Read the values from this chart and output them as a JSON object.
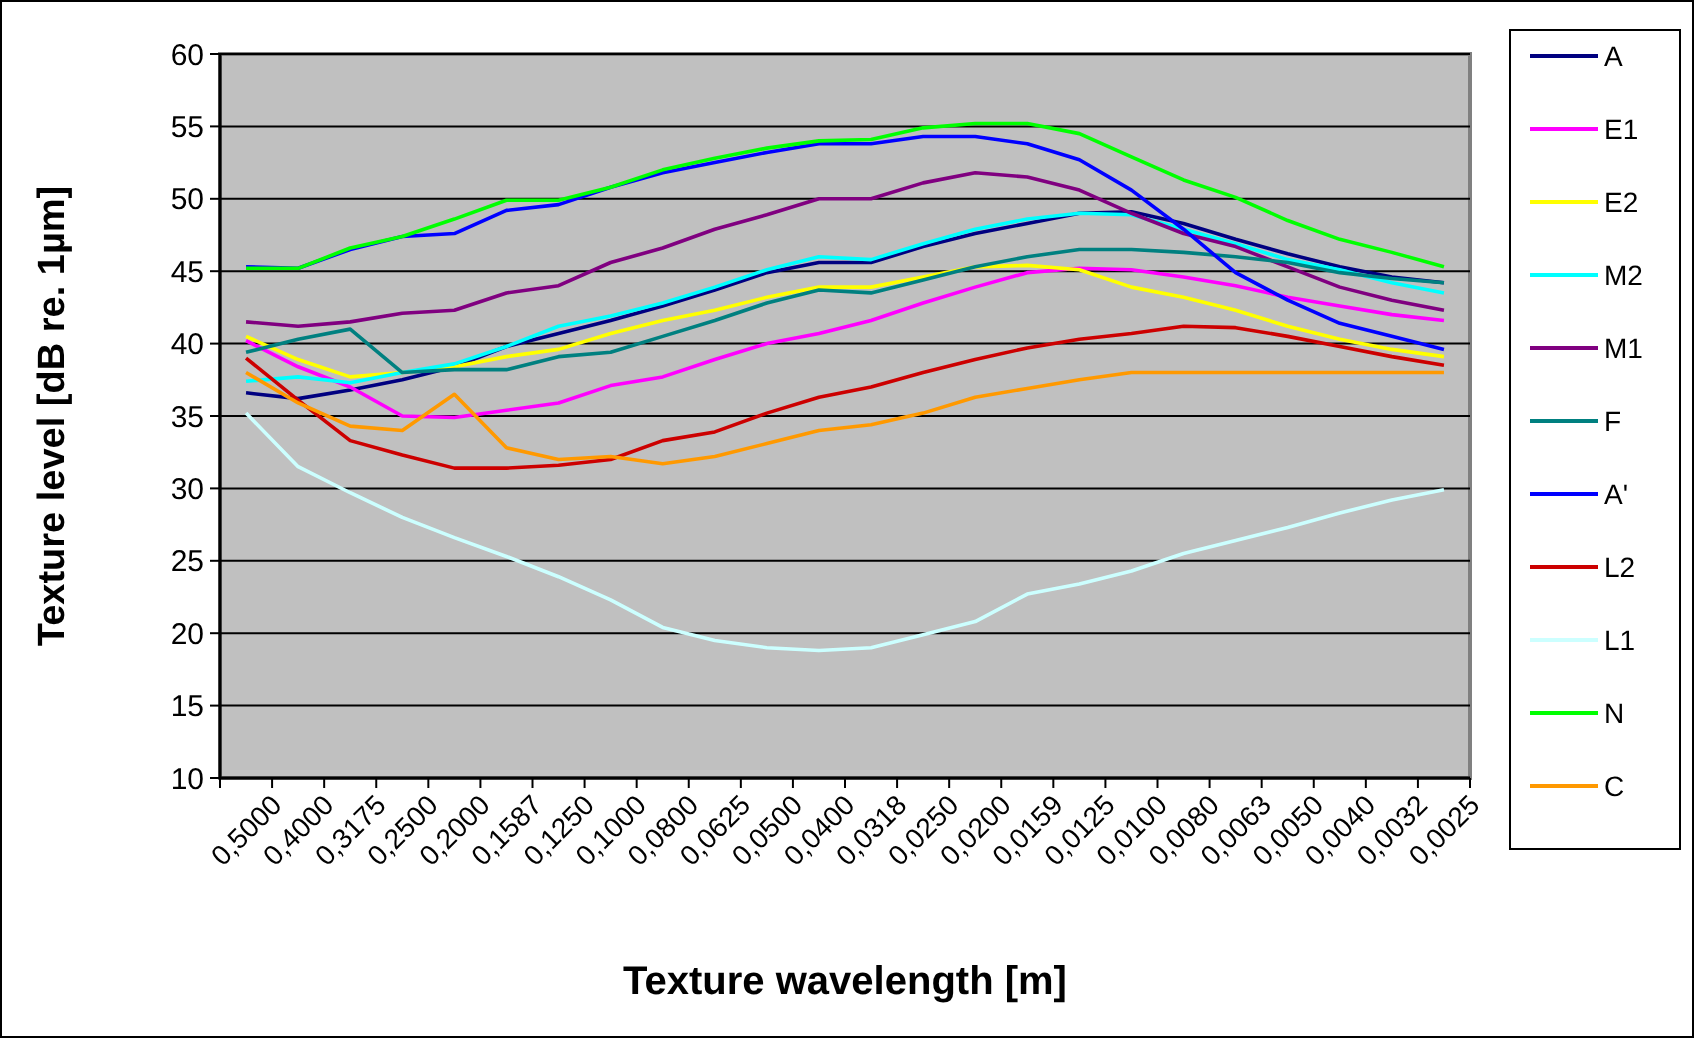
{
  "chart_data": {
    "type": "line",
    "xlabel": "Texture wavelength [m]",
    "ylabel": "Texture level [dB re. 1µm]",
    "categories": [
      "0,5000",
      "0,4000",
      "0,3175",
      "0,2500",
      "0,2000",
      "0,1587",
      "0,1250",
      "0,1000",
      "0,0800",
      "0,0625",
      "0,0500",
      "0,0400",
      "0,0318",
      "0,0250",
      "0,0200",
      "0,0159",
      "0,0125",
      "0,0100",
      "0,0080",
      "0,0063",
      "0,0050",
      "0,0040",
      "0,0032",
      "0,0025"
    ],
    "ylim": [
      10,
      60
    ],
    "yticks": [
      10,
      15,
      20,
      25,
      30,
      35,
      40,
      45,
      50,
      55,
      60
    ],
    "grid": "y",
    "legend": "right",
    "marker": "none",
    "line_style": "solid",
    "series": [
      {
        "name": "A",
        "color": "#000080",
        "values": [
          36.6,
          36.2,
          36.8,
          37.5,
          38.4,
          39.8,
          40.7,
          41.6,
          42.6,
          43.7,
          44.9,
          45.6,
          45.6,
          46.7,
          47.6,
          48.3,
          49,
          49.1,
          48.3,
          47.2,
          46.2,
          45.3,
          44.6,
          44.2
        ]
      },
      {
        "name": "E1",
        "color": "#ff00ff",
        "values": [
          40.2,
          38.4,
          37,
          35,
          34.9,
          35.4,
          35.9,
          37.1,
          37.7,
          38.9,
          40,
          40.7,
          41.6,
          42.8,
          43.9,
          44.9,
          45.2,
          45.1,
          44.6,
          44,
          43.2,
          42.6,
          42,
          41.6
        ]
      },
      {
        "name": "E2",
        "color": "#ffff00",
        "values": [
          40.5,
          38.9,
          37.7,
          38,
          38.4,
          39.1,
          39.6,
          40.7,
          41.6,
          42.3,
          43.2,
          43.9,
          43.9,
          44.6,
          45.3,
          45.4,
          45.1,
          43.9,
          43.2,
          42.3,
          41.2,
          40.3,
          39.6,
          39.1
        ]
      },
      {
        "name": "M2",
        "color": "#00ffff",
        "values": [
          37.4,
          37.7,
          37.3,
          38,
          38.6,
          39.8,
          41.2,
          41.9,
          42.8,
          43.9,
          45.1,
          46,
          45.8,
          46.9,
          47.9,
          48.6,
          49,
          48.9,
          47.9,
          46.9,
          45.8,
          45.1,
          44.2,
          43.5
        ]
      },
      {
        "name": "M1",
        "color": "#800080",
        "values": [
          41.5,
          41.2,
          41.5,
          42.1,
          42.3,
          43.5,
          44,
          45.6,
          46.6,
          47.9,
          48.9,
          50,
          50,
          51.1,
          51.8,
          51.5,
          50.6,
          49,
          47.6,
          46.7,
          45.3,
          43.9,
          43,
          42.3
        ]
      },
      {
        "name": "F",
        "color": "#008080",
        "values": [
          39.4,
          40.3,
          41,
          38,
          38.2,
          38.2,
          39.1,
          39.4,
          40.5,
          41.6,
          42.8,
          43.7,
          43.5,
          44.4,
          45.3,
          46,
          46.5,
          46.5,
          46.3,
          46,
          45.6,
          44.9,
          44.5,
          44.2
        ]
      },
      {
        "name": "A'",
        "color": "#0000ff",
        "values": [
          45.3,
          45.2,
          46.5,
          47.4,
          47.6,
          49.2,
          49.6,
          50.8,
          51.8,
          52.5,
          53.2,
          53.8,
          53.8,
          54.3,
          54.3,
          53.8,
          52.7,
          50.6,
          47.9,
          44.9,
          43,
          41.4,
          40.5,
          39.6
        ]
      },
      {
        "name": "L2",
        "color": "#cc0000",
        "values": [
          39,
          36.1,
          33.3,
          32.3,
          31.4,
          31.4,
          31.6,
          32,
          33.3,
          33.9,
          35.2,
          36.3,
          37,
          38,
          38.9,
          39.7,
          40.3,
          40.7,
          41.2,
          41.1,
          40.5,
          39.8,
          39.1,
          38.5
        ]
      },
      {
        "name": "L1",
        "color": "#ccffff",
        "values": [
          35.2,
          31.5,
          29.7,
          28,
          26.6,
          25.3,
          23.9,
          22.3,
          20.4,
          19.5,
          19,
          18.8,
          19,
          19.9,
          20.8,
          22.7,
          23.4,
          24.3,
          25.5,
          26.4,
          27.3,
          28.3,
          29.2,
          29.9
        ]
      },
      {
        "name": "N",
        "color": "#00ff00",
        "values": [
          45.2,
          45.2,
          46.6,
          47.4,
          48.6,
          49.9,
          49.9,
          50.8,
          52,
          52.8,
          53.5,
          54,
          54.1,
          54.9,
          55.2,
          55.2,
          54.5,
          52.9,
          51.3,
          50.1,
          48.5,
          47.2,
          46.3,
          45.3
        ]
      },
      {
        "name": "C",
        "color": "#ff9900",
        "values": [
          38,
          35.9,
          34.3,
          34,
          36.5,
          32.8,
          32,
          32.2,
          31.7,
          32.2,
          33.1,
          34,
          34.4,
          35.2,
          36.3,
          36.9,
          37.5,
          38,
          38,
          38,
          38,
          38,
          38,
          38
        ]
      }
    ]
  }
}
